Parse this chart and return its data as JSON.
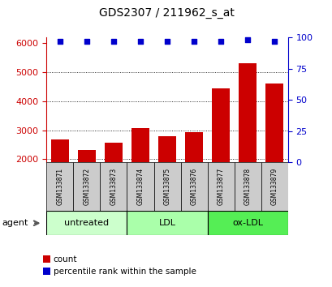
{
  "title": "GDS2307 / 211962_s_at",
  "samples": [
    "GSM133871",
    "GSM133872",
    "GSM133873",
    "GSM133874",
    "GSM133875",
    "GSM133876",
    "GSM133877",
    "GSM133878",
    "GSM133879"
  ],
  "counts": [
    2680,
    2310,
    2560,
    3060,
    2800,
    2930,
    4430,
    5320,
    4620
  ],
  "percentile_ranks": [
    97,
    97,
    97,
    97,
    97,
    97,
    97,
    98,
    97
  ],
  "groups": [
    {
      "label": "untreated",
      "indices": [
        0,
        1,
        2
      ],
      "color": "#ccffcc"
    },
    {
      "label": "LDL",
      "indices": [
        3,
        4,
        5
      ],
      "color": "#aaffaa"
    },
    {
      "label": "ox-LDL",
      "indices": [
        6,
        7,
        8
      ],
      "color": "#55ee55"
    }
  ],
  "bar_color": "#cc0000",
  "dot_color": "#0000cc",
  "ylim_left": [
    1900,
    6200
  ],
  "ylim_right": [
    0,
    100
  ],
  "yticks_left": [
    2000,
    3000,
    4000,
    5000,
    6000
  ],
  "yticks_right": [
    0,
    25,
    50,
    75,
    100
  ],
  "ylabel_left_color": "#cc0000",
  "ylabel_right_color": "#0000cc",
  "label_row_color": "#cccccc",
  "agent_label": "agent",
  "legend_count_label": "count",
  "legend_pct_label": "percentile rank within the sample",
  "figsize": [
    4.1,
    3.54
  ],
  "dpi": 100
}
